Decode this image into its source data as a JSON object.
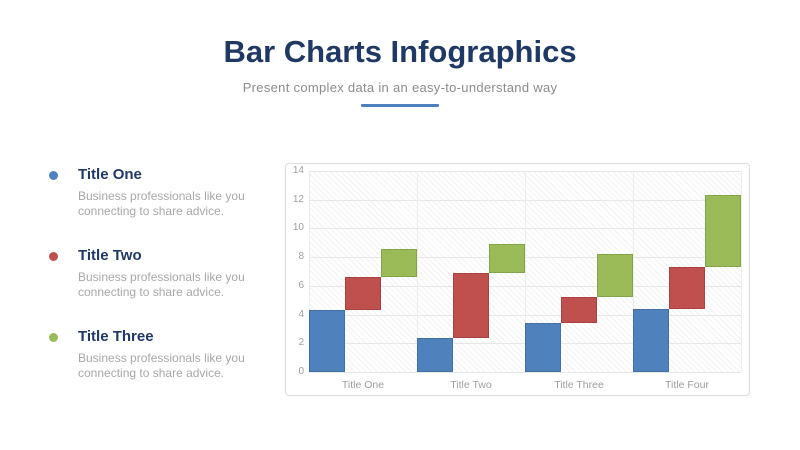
{
  "header": {
    "title": "Bar Charts Infographics",
    "subtitle": "Present complex data in an easy-to-understand way"
  },
  "legend_items": [
    {
      "title": "Title One",
      "description": "Business professionals like you connecting to share advice.",
      "color": "#4f81bd"
    },
    {
      "title": "Title Two",
      "description": "Business professionals like you connecting to share advice.",
      "color": "#c0504d"
    },
    {
      "title": "Title Three",
      "description": "Business professionals like you connecting to share advice.",
      "color": "#9bbb59"
    }
  ],
  "colors": {
    "title_navy": "#1f3864",
    "subtitle_gray": "#8c8c8c",
    "accent_underline": "#4f81bd",
    "series_blue": "#4f81bd",
    "series_red": "#c0504d",
    "series_green": "#9bbb59",
    "axis_label_gray": "#9e9e9e",
    "chart_border": "#dcdcdc"
  },
  "chart_data": {
    "type": "bar",
    "subtype": "stacked-waterfall",
    "title": "",
    "xlabel": "",
    "ylabel": "",
    "categories": [
      "Title One",
      "Title Two",
      "Title Three",
      "Title Four"
    ],
    "series": [
      {
        "name": "Title One (blue)",
        "color": "#4f81bd",
        "border_color": "#446fa2",
        "segments": [
          [
            0,
            4.3
          ],
          [
            0,
            2.4
          ],
          [
            0,
            3.4
          ],
          [
            0,
            4.4
          ]
        ]
      },
      {
        "name": "Title Two (red)",
        "color": "#c0504d",
        "border_color": "#a84340",
        "segments": [
          [
            4.3,
            6.6
          ],
          [
            2.4,
            6.9
          ],
          [
            3.4,
            5.2
          ],
          [
            4.4,
            7.3
          ]
        ]
      },
      {
        "name": "Title Three (green)",
        "color": "#9bbb59",
        "border_color": "#84a449",
        "segments": [
          [
            6.6,
            8.6
          ],
          [
            6.9,
            8.9
          ],
          [
            5.2,
            8.2
          ],
          [
            7.3,
            12.3
          ]
        ]
      }
    ],
    "ylim": [
      0,
      14
    ],
    "yticks": [
      0,
      2,
      4,
      6,
      8,
      10,
      12,
      14
    ],
    "grid": true,
    "hatched_plot_background": true,
    "legend_position": "none"
  }
}
